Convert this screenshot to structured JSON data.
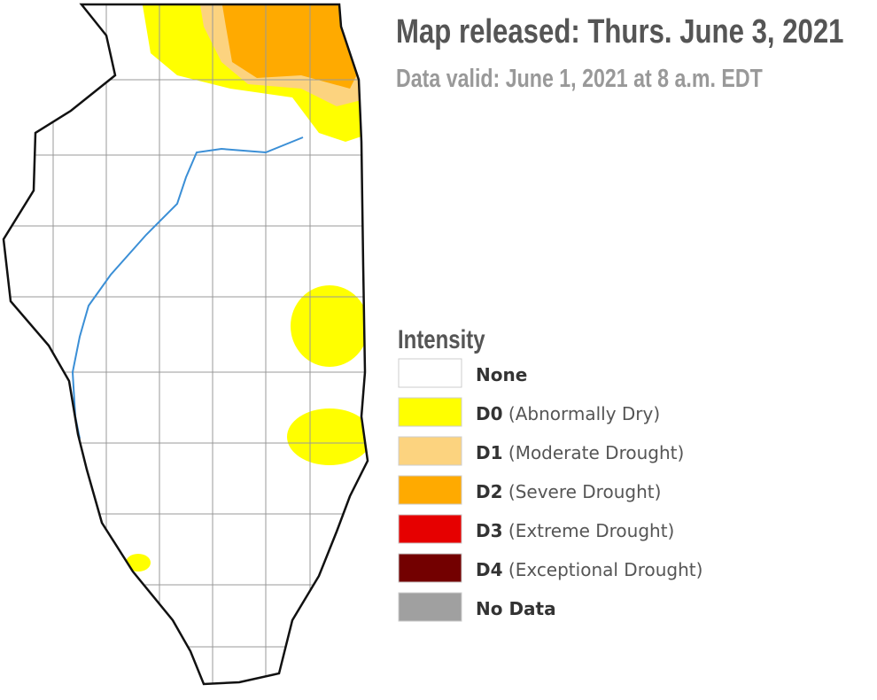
{
  "header": {
    "title": "Map released: Thurs. June 3, 2021",
    "subtitle": "Data valid: June 1, 2021 at 8 a.m. EDT"
  },
  "legend": {
    "title": "Intensity",
    "items": [
      {
        "code": "None",
        "color": "#ffffff"
      },
      {
        "code": "D0",
        "label": "(Abnormally Dry)",
        "color": "#ffff00"
      },
      {
        "code": "D1",
        "label": "(Moderate Drought)",
        "color": "#fcd37f"
      },
      {
        "code": "D2",
        "label": "(Severe Drought)",
        "color": "#ffaa00"
      },
      {
        "code": "D3",
        "label": "(Extreme Drought)",
        "color": "#e60000"
      },
      {
        "code": "D4",
        "label": "(Exceptional Drought)",
        "color": "#730000"
      },
      {
        "code": "No Data",
        "color": "#a0a0a0"
      }
    ]
  }
}
